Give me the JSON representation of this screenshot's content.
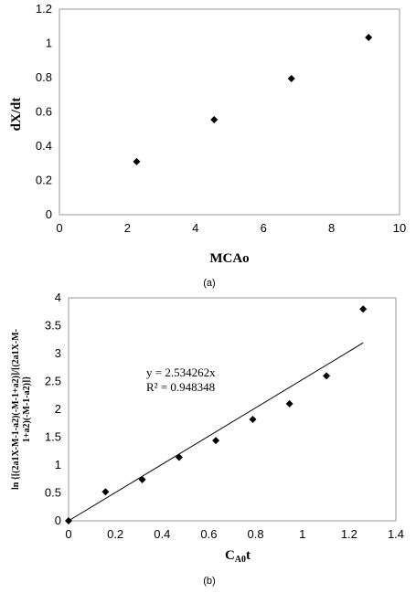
{
  "chart_data": [
    {
      "type": "scatter",
      "xlabel": "MCAo",
      "ylabel": "dX/dt",
      "xlim": [
        0,
        10
      ],
      "ylim": [
        0,
        1.2
      ],
      "xticks": [
        "0",
        "2",
        "4",
        "6",
        "8",
        "10"
      ],
      "yticks": [
        "0",
        "0.2",
        "0.4",
        "0.6",
        "0.8",
        "1",
        "1.2"
      ],
      "grid": false,
      "points": [
        {
          "x": 2.27,
          "y": 0.31
        },
        {
          "x": 4.55,
          "y": 0.555
        },
        {
          "x": 6.82,
          "y": 0.795
        },
        {
          "x": 9.09,
          "y": 1.035
        }
      ],
      "caption": "(a)"
    },
    {
      "type": "scatter",
      "xlabel_main": "C",
      "xlabel_sub": "A0",
      "xlabel_tail": "t",
      "ylabel_line1": "ln {[(2a1X-M-1-a2)(-M-1+a2)]/[(2a1X-M-",
      "ylabel_line2": "1+a2)(-M-1-a2)]}",
      "xlim": [
        0,
        1.4
      ],
      "ylim": [
        0,
        4
      ],
      "xticks": [
        "0",
        "0.2",
        "0.4",
        "0.6",
        "0.8",
        "1",
        "1.2",
        "1.4"
      ],
      "yticks": [
        "0",
        "0.5",
        "1",
        "1.5",
        "2",
        "2.5",
        "3",
        "3.5",
        "4"
      ],
      "grid": false,
      "points": [
        {
          "x": 0,
          "y": 0
        },
        {
          "x": 0.158,
          "y": 0.52
        },
        {
          "x": 0.315,
          "y": 0.74
        },
        {
          "x": 0.473,
          "y": 1.14
        },
        {
          "x": 0.63,
          "y": 1.44
        },
        {
          "x": 0.788,
          "y": 1.82
        },
        {
          "x": 0.945,
          "y": 2.1
        },
        {
          "x": 1.103,
          "y": 2.6
        },
        {
          "x": 1.26,
          "y": 3.8
        }
      ],
      "trendline": {
        "slope": 2.534262,
        "x_start": 0,
        "x_end": 1.26
      },
      "equation": "y = 2.534262x",
      "r2": "R² = 0.948348",
      "caption": "(b)"
    }
  ]
}
